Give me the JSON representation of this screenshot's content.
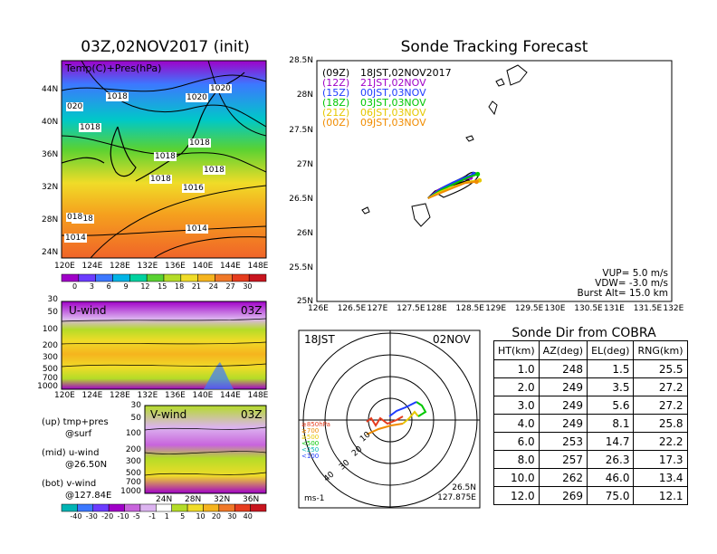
{
  "map_panel": {
    "title": "03Z,02NOV2017 (init)",
    "label": "Temp(C)+Pres(hPa)",
    "lon_ticks": [
      "120E",
      "124E",
      "128E",
      "132E",
      "136E",
      "140E",
      "144E",
      "148E"
    ],
    "lat_ticks": [
      "44N",
      "40N",
      "36N",
      "32N",
      "28N",
      "24N"
    ],
    "isobar_labels": [
      "1018",
      "1020",
      "1018",
      "1020",
      "1018",
      "1018",
      "1018",
      "1018",
      "1016",
      "1014",
      "1018",
      "1014",
      "020",
      "018"
    ],
    "colorbar": [
      "0",
      "3",
      "6",
      "9",
      "12",
      "15",
      "18",
      "21",
      "24",
      "27",
      "30"
    ],
    "colorbar_colors": [
      "#a000c8",
      "#6c3cff",
      "#3c78ff",
      "#00b4e6",
      "#00d2a0",
      "#5ad232",
      "#b4dc28",
      "#f0dc28",
      "#f5b41e",
      "#f07828",
      "#e63c1e",
      "#c8141e"
    ]
  },
  "uwind_panel": {
    "title": "U-wind",
    "time": "03Z",
    "p_ticks": [
      "30",
      "50",
      "100",
      "200",
      "300",
      "500",
      "700",
      "1000"
    ],
    "lon_ticks": [
      "120E",
      "124E",
      "128E",
      "132E",
      "136E",
      "140E",
      "144E",
      "148E"
    ]
  },
  "vwind_panel": {
    "title": "V-wind",
    "time": "03Z",
    "p_ticks": [
      "30",
      "50",
      "100",
      "200",
      "300",
      "500",
      "700",
      "1000"
    ],
    "lat_ticks": [
      "24N",
      "28N",
      "32N",
      "36N"
    ],
    "colorbar": [
      "-40",
      "-30",
      "-20",
      "-10",
      "-5",
      "-1",
      "1",
      "5",
      "10",
      "20",
      "30",
      "40"
    ],
    "colorbar_colors": [
      "#00b4b4",
      "#3c78ff",
      "#6c3cff",
      "#a000c8",
      "#c864dc",
      "#dcb4f0",
      "#ffffff",
      "#b4dc28",
      "#f0dc28",
      "#f5b41e",
      "#f07828",
      "#e63c1e",
      "#c8141e"
    ]
  },
  "legend_notes": {
    "up": "(up) tmp+pres",
    "up2": "@surf",
    "mid": "(mid) u-wind",
    "mid2": "@26.50N",
    "bot": "(bot) v-wind",
    "bot2": "@127.84E"
  },
  "track_panel": {
    "title": "Sonde Tracking Forecast",
    "xticks": [
      "126E",
      "126.5E",
      "127E",
      "127.5E",
      "128E",
      "128.5E",
      "129E",
      "129.5E",
      "130E",
      "130.5E",
      "131E",
      "131.5E",
      "132E"
    ],
    "yticks": [
      "28.5N",
      "28N",
      "27.5N",
      "27N",
      "26.5N",
      "26N",
      "25.5N",
      "25N"
    ],
    "xlim": [
      126,
      132
    ],
    "ylim": [
      25,
      28.5
    ],
    "launches": [
      {
        "run": "(09Z)",
        "time": "18JST,02NOV2017",
        "color": "#000000"
      },
      {
        "run": "(12Z)",
        "time": "21JST,02NOV",
        "color": "#a000c8"
      },
      {
        "run": "(15Z)",
        "time": "00JST,03NOV",
        "color": "#1e3cff"
      },
      {
        "run": "(18Z)",
        "time": "03JST,03NOV",
        "color": "#00c800"
      },
      {
        "run": "(21Z)",
        "time": "06JST,03NOV",
        "color": "#e6c800"
      },
      {
        "run": "(00Z)",
        "time": "09JST,03NOV",
        "color": "#f08c00"
      }
    ],
    "vup": "VUP=  5.0 m/s",
    "vdw": "VDW= -3.0 m/s",
    "burst": "Burst Alt= 15.0 km"
  },
  "polar_panel": {
    "left": "18JST",
    "right": "02NOV",
    "ring_labels": [
      "10",
      "20",
      "30",
      "40"
    ],
    "pressure_legend": [
      {
        "text": "≥850hPa",
        "color": "#e63c1e"
      },
      {
        "text": "≥700",
        "color": "#f08c00"
      },
      {
        "text": "≥500",
        "color": "#e6c800"
      },
      {
        "text": "<500",
        "color": "#00c800"
      },
      {
        "text": "<250",
        "color": "#00b4b4"
      },
      {
        "text": "<100",
        "color": "#1e3cff"
      }
    ],
    "unit": "ms-1",
    "lat": "26.5N",
    "lon": "127.875E"
  },
  "cobra_table": {
    "title": "Sonde Dir from COBRA",
    "headers": [
      "HT(km)",
      "AZ(deg)",
      "EL(deg)",
      "RNG(km)"
    ],
    "rows": [
      [
        "1.0",
        "248",
        "1.5",
        "25.5"
      ],
      [
        "2.0",
        "249",
        "3.5",
        "27.2"
      ],
      [
        "3.0",
        "249",
        "5.6",
        "27.2"
      ],
      [
        "4.0",
        "249",
        "8.1",
        "25.8"
      ],
      [
        "6.0",
        "253",
        "14.7",
        "22.2"
      ],
      [
        "8.0",
        "257",
        "26.3",
        "17.3"
      ],
      [
        "10.0",
        "262",
        "46.0",
        "13.4"
      ],
      [
        "12.0",
        "269",
        "75.0",
        "12.1"
      ]
    ]
  },
  "chart_data": [
    {
      "type": "table",
      "title": "Sonde Dir from COBRA",
      "columns": [
        "HT(km)",
        "AZ(deg)",
        "EL(deg)",
        "RNG(km)"
      ],
      "rows": [
        [
          1.0,
          248,
          1.5,
          25.5
        ],
        [
          2.0,
          249,
          3.5,
          27.2
        ],
        [
          3.0,
          249,
          5.6,
          27.2
        ],
        [
          4.0,
          249,
          8.1,
          25.8
        ],
        [
          6.0,
          253,
          14.7,
          22.2
        ],
        [
          8.0,
          257,
          26.3,
          17.3
        ],
        [
          10.0,
          262,
          46.0,
          13.4
        ],
        [
          12.0,
          269,
          75.0,
          12.1
        ]
      ]
    },
    {
      "type": "line",
      "title": "Sonde Tracking Forecast",
      "xlim": [
        126,
        132
      ],
      "ylim": [
        25,
        28.5
      ],
      "series": [
        {
          "name": "(09Z)",
          "color": "#000000",
          "x": [
            127.88,
            128.0,
            128.2,
            128.4,
            128.55
          ],
          "y": [
            26.5,
            26.6,
            26.67,
            26.72,
            26.75
          ]
        },
        {
          "name": "(12Z)",
          "color": "#a000c8",
          "x": [
            127.88,
            128.05,
            128.25,
            128.45,
            128.6
          ],
          "y": [
            26.5,
            26.62,
            26.7,
            26.76,
            26.8
          ]
        },
        {
          "name": "(15Z)",
          "color": "#1e3cff",
          "x": [
            127.88,
            128.1,
            128.3,
            128.5,
            128.65
          ],
          "y": [
            26.5,
            26.64,
            26.73,
            26.8,
            26.85
          ]
        },
        {
          "name": "(18Z)",
          "color": "#00c800",
          "x": [
            127.88,
            128.1,
            128.35,
            128.55,
            128.72
          ],
          "y": [
            26.5,
            26.62,
            26.72,
            26.8,
            26.85
          ]
        },
        {
          "name": "(21Z)",
          "color": "#e6c800",
          "x": [
            127.88,
            128.1,
            128.35,
            128.55,
            128.75
          ],
          "y": [
            26.5,
            26.6,
            26.68,
            26.74,
            26.76
          ]
        },
        {
          "name": "(00Z)",
          "color": "#f08c00",
          "x": [
            127.88,
            128.1,
            128.3,
            128.5,
            128.7
          ],
          "y": [
            26.5,
            26.58,
            26.65,
            26.72,
            26.74
          ]
        }
      ]
    }
  ]
}
